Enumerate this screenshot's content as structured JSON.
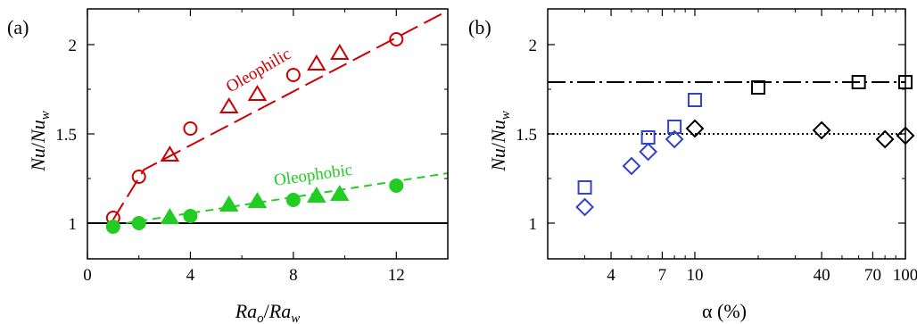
{
  "chart_data": [
    {
      "panel_label": "(a)",
      "type": "scatter",
      "xlabel": "Ra_o/Ra_w",
      "ylabel": "Nu/Nu_w",
      "xlim": [
        0,
        14
      ],
      "ylim": [
        0.8,
        2.2
      ],
      "x_ticks": [
        0,
        4,
        8,
        12
      ],
      "y_ticks": [
        1,
        1.5,
        2
      ],
      "x_tick_labels": [
        "0",
        "4",
        "8",
        "12"
      ],
      "y_tick_labels": [
        "1",
        "1.5",
        "2"
      ],
      "annotations": [
        {
          "text": "Oleophilic",
          "color": "#cc0000"
        },
        {
          "text": "Oleophobic",
          "color": "#22cc22"
        }
      ],
      "series": [
        {
          "marker": "open-circle",
          "color": "#cc0000",
          "x": [
            1,
            2,
            4,
            8,
            12
          ],
          "y": [
            1.03,
            1.26,
            1.53,
            1.83,
            2.03
          ]
        },
        {
          "marker": "open-triangle",
          "color": "#cc0000",
          "x": [
            3.2,
            5.5,
            6.6,
            8.9,
            9.8
          ],
          "y": [
            1.38,
            1.65,
            1.72,
            1.89,
            1.95
          ]
        },
        {
          "marker": "filled-circle",
          "color": "#22cc22",
          "x": [
            1,
            2,
            4,
            8,
            12
          ],
          "y": [
            0.98,
            1.0,
            1.04,
            1.13,
            1.21
          ]
        },
        {
          "marker": "filled-triangle",
          "color": "#22cc22",
          "x": [
            3.2,
            5.5,
            6.6,
            8.9,
            9.8
          ],
          "y": [
            1.03,
            1.1,
            1.12,
            1.15,
            1.16
          ]
        }
      ],
      "fit_lines": [
        {
          "style": "long-dash",
          "color": "#cc0000",
          "x": [
            1,
            2.2,
            14
          ],
          "y": [
            1.02,
            1.3,
            2.19
          ]
        },
        {
          "style": "dashed",
          "color": "#22cc22",
          "x": [
            1.5,
            14
          ],
          "y": [
            1.0,
            1.28
          ]
        }
      ],
      "reference_lines": [
        {
          "style": "solid",
          "color": "#000000",
          "y": 1.0
        }
      ]
    },
    {
      "panel_label": "(b)",
      "type": "scatter",
      "xlabel": "α (%)",
      "ylabel": "Nu/Nu_w",
      "xscale": "log",
      "xlim": [
        2,
        100
      ],
      "ylim": [
        0.8,
        2.2
      ],
      "x_ticks": [
        4,
        7,
        10,
        40,
        70,
        100
      ],
      "y_ticks": [
        1,
        1.5,
        2
      ],
      "x_tick_labels": [
        "4",
        "7",
        "10",
        "40",
        "70",
        "100"
      ],
      "y_tick_labels": [
        "1",
        "1.5",
        "2"
      ],
      "series": [
        {
          "marker": "open-square",
          "color": "#3344cc",
          "x": [
            3,
            6,
            8,
            10
          ],
          "y": [
            1.2,
            1.48,
            1.54,
            1.69
          ]
        },
        {
          "marker": "open-diamond",
          "color": "#3344cc",
          "x": [
            3,
            5,
            6,
            8
          ],
          "y": [
            1.09,
            1.32,
            1.4,
            1.47
          ]
        },
        {
          "marker": "open-square",
          "color": "#000000",
          "x": [
            20,
            60,
            100
          ],
          "y": [
            1.76,
            1.79,
            1.79
          ]
        },
        {
          "marker": "open-diamond",
          "color": "#000000",
          "x": [
            10,
            40,
            80,
            100
          ],
          "y": [
            1.53,
            1.52,
            1.47,
            1.49
          ]
        }
      ],
      "reference_lines": [
        {
          "style": "dash-dot",
          "color": "#000000",
          "y": 1.79
        },
        {
          "style": "dotted",
          "color": "#000000",
          "y": 1.5
        }
      ]
    }
  ]
}
